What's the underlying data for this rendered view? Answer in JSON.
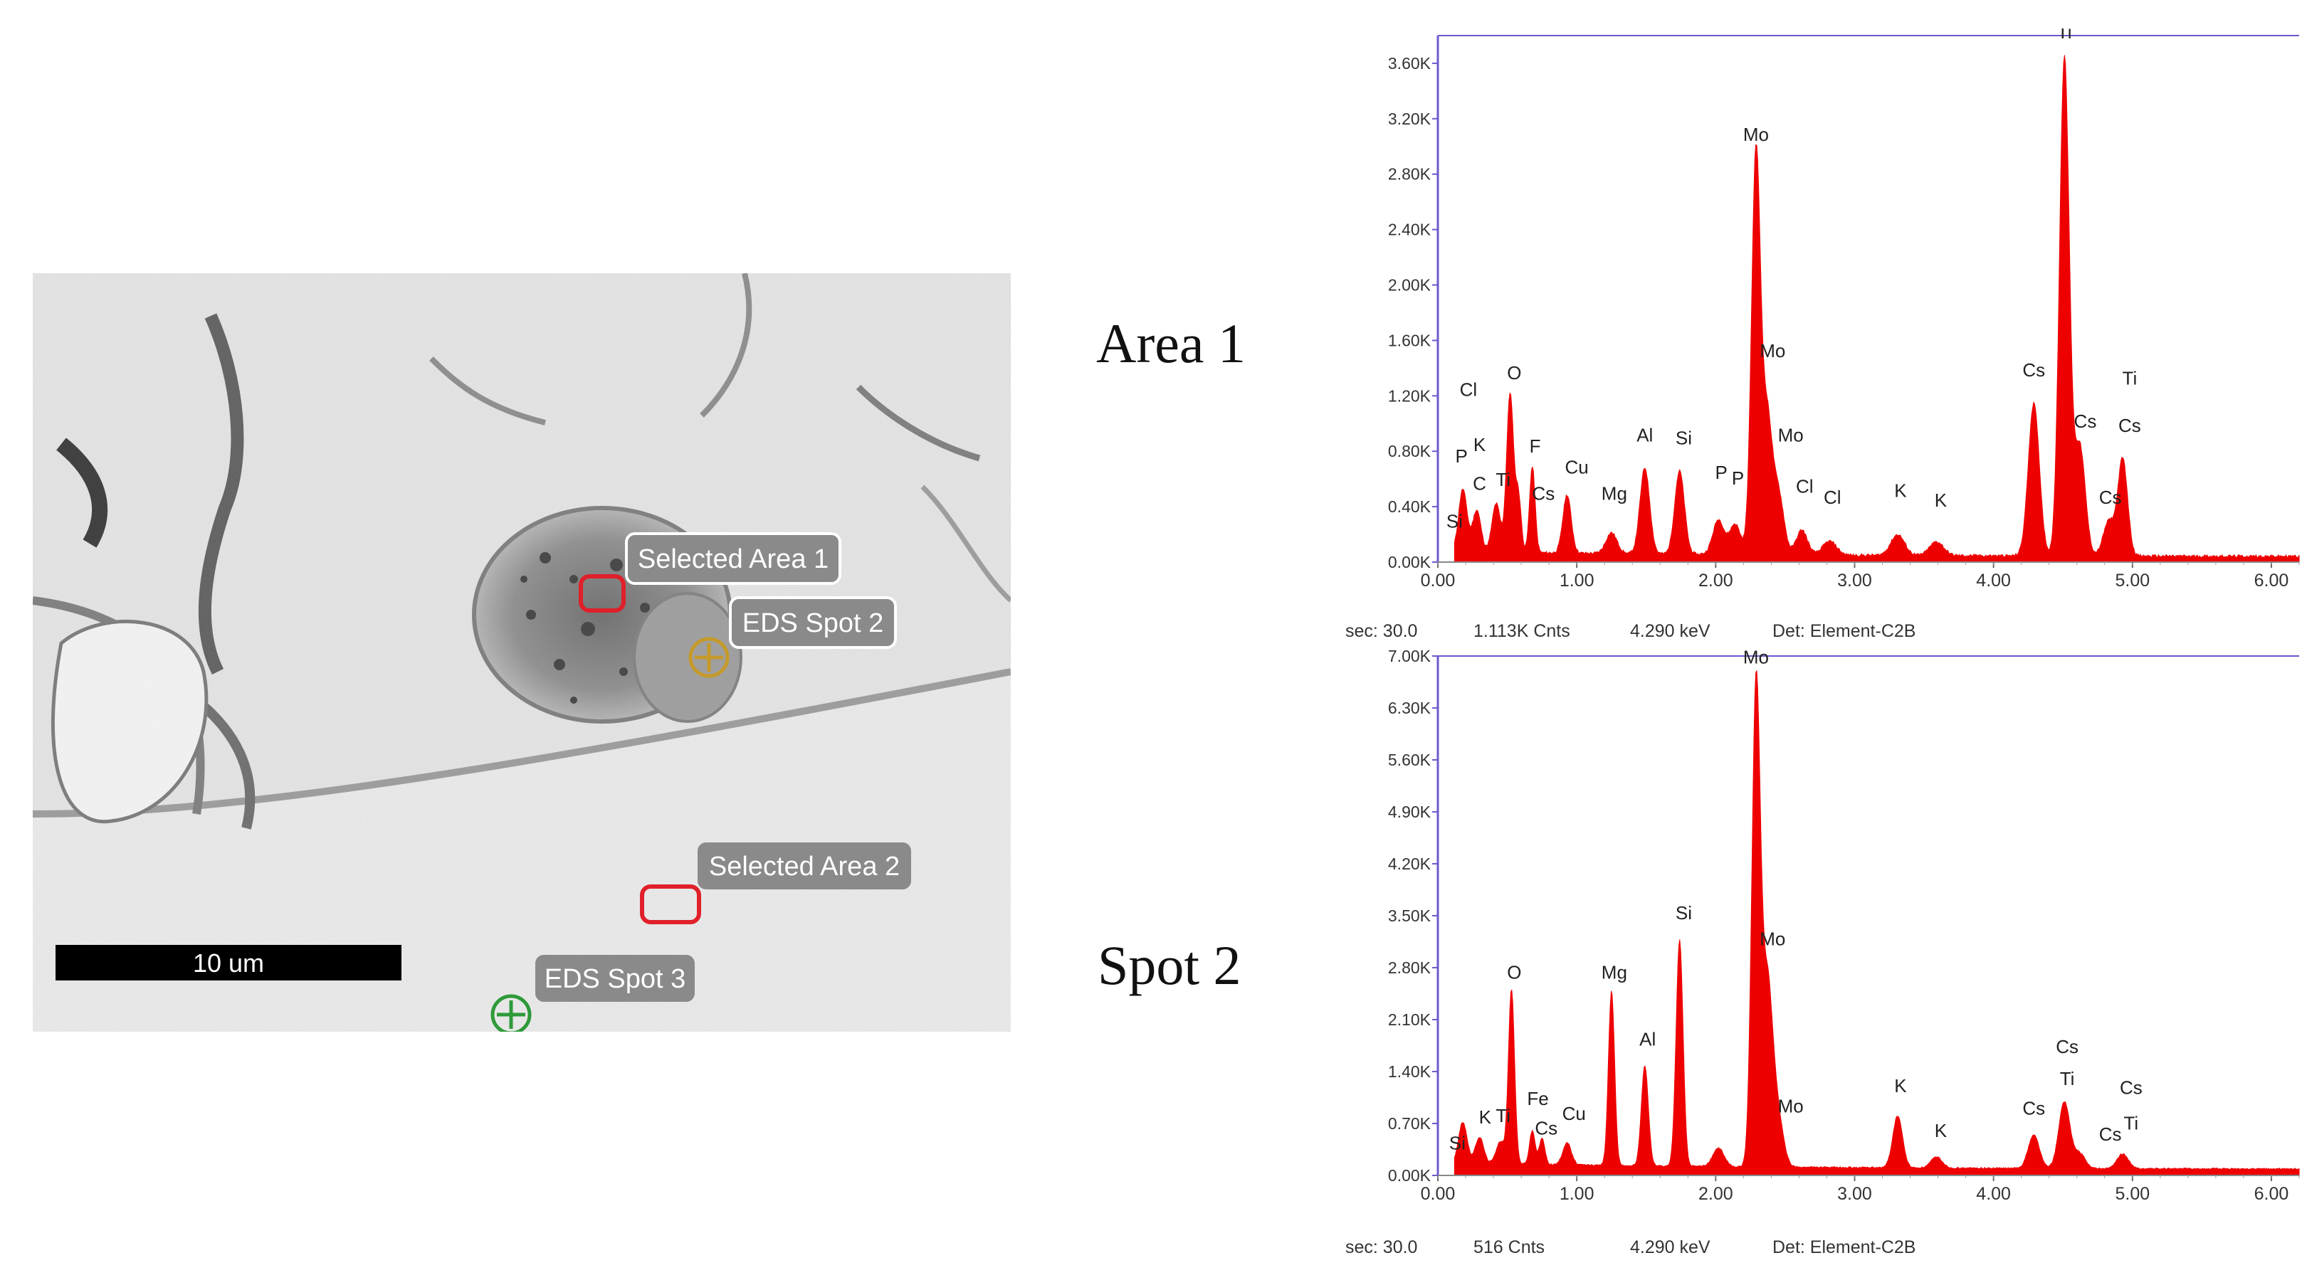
{
  "labels": {
    "area1": "Area 1",
    "spot2": "Spot 2"
  },
  "micrograph": {
    "scale_bar": "10 um",
    "annotations": [
      {
        "id": "area1",
        "text": "Selected Area 1",
        "kind": "area",
        "color": "#e0202a"
      },
      {
        "id": "spot2",
        "text": "EDS Spot 2",
        "kind": "spot",
        "color": "#c59a2a"
      },
      {
        "id": "area2",
        "text": "Selected Area 2",
        "kind": "area",
        "color": "#e0202a"
      },
      {
        "id": "spot3",
        "text": "EDS Spot 3",
        "kind": "spot",
        "color": "#2e9a3a"
      }
    ]
  },
  "colors": {
    "spectrum_fill": "#ee0000",
    "plot_frame": "#6a5acd",
    "tag_fill": "#8a8a8a",
    "tag_text": "#ffffff"
  },
  "chart_data": [
    {
      "type": "area",
      "title": "Area 1",
      "xlabel": "",
      "ylabel": "",
      "xlim": [
        0,
        6.2
      ],
      "ylim": [
        0,
        3.8
      ],
      "x_ticks": [
        "0.00",
        "1.00",
        "2.00",
        "3.00",
        "4.00",
        "5.00",
        "6.00"
      ],
      "y_ticks": [
        "0.00K",
        "0.40K",
        "0.80K",
        "1.20K",
        "1.60K",
        "2.00K",
        "2.40K",
        "2.80K",
        "3.20K",
        "3.60K"
      ],
      "background": 0.05,
      "peaks": [
        {
          "x": 0.18,
          "y": 0.45,
          "w": 0.03
        },
        {
          "x": 0.28,
          "y": 0.3,
          "w": 0.03
        },
        {
          "x": 0.42,
          "y": 0.35,
          "w": 0.03
        },
        {
          "x": 0.52,
          "y": 1.15,
          "w": 0.025
        },
        {
          "x": 0.58,
          "y": 0.4,
          "w": 0.02
        },
        {
          "x": 0.68,
          "y": 0.62,
          "w": 0.02
        },
        {
          "x": 0.93,
          "y": 0.42,
          "w": 0.03
        },
        {
          "x": 1.25,
          "y": 0.15,
          "w": 0.04
        },
        {
          "x": 1.49,
          "y": 0.62,
          "w": 0.035
        },
        {
          "x": 1.74,
          "y": 0.6,
          "w": 0.035
        },
        {
          "x": 2.02,
          "y": 0.25,
          "w": 0.04
        },
        {
          "x": 2.14,
          "y": 0.22,
          "w": 0.04
        },
        {
          "x": 2.29,
          "y": 2.9,
          "w": 0.032
        },
        {
          "x": 2.37,
          "y": 0.95,
          "w": 0.035
        },
        {
          "x": 2.45,
          "y": 0.45,
          "w": 0.04
        },
        {
          "x": 2.62,
          "y": 0.18,
          "w": 0.04
        },
        {
          "x": 2.82,
          "y": 0.1,
          "w": 0.05
        },
        {
          "x": 3.31,
          "y": 0.15,
          "w": 0.05
        },
        {
          "x": 3.59,
          "y": 0.1,
          "w": 0.05
        },
        {
          "x": 4.29,
          "y": 1.1,
          "w": 0.04
        },
        {
          "x": 4.51,
          "y": 3.6,
          "w": 0.035
        },
        {
          "x": 4.62,
          "y": 0.8,
          "w": 0.04
        },
        {
          "x": 4.83,
          "y": 0.25,
          "w": 0.04
        },
        {
          "x": 4.93,
          "y": 0.7,
          "w": 0.035
        }
      ],
      "peak_labels": [
        {
          "text": "Ti",
          "x": 4.51,
          "y": 3.78
        },
        {
          "text": "Mo",
          "x": 2.29,
          "y": 3.04
        },
        {
          "text": "Mo",
          "x": 2.41,
          "y": 1.48
        },
        {
          "text": "Mo",
          "x": 2.54,
          "y": 0.87
        },
        {
          "text": "Cl",
          "x": 0.22,
          "y": 1.2
        },
        {
          "text": "O",
          "x": 0.55,
          "y": 1.32
        },
        {
          "text": "K",
          "x": 0.3,
          "y": 0.8
        },
        {
          "text": "P",
          "x": 0.17,
          "y": 0.72
        },
        {
          "text": "C",
          "x": 0.3,
          "y": 0.52
        },
        {
          "text": "Ti",
          "x": 0.47,
          "y": 0.55
        },
        {
          "text": "F",
          "x": 0.7,
          "y": 0.79
        },
        {
          "text": "Cs",
          "x": 0.76,
          "y": 0.45
        },
        {
          "text": "Cu",
          "x": 1.0,
          "y": 0.64
        },
        {
          "text": "Mg",
          "x": 1.27,
          "y": 0.45
        },
        {
          "text": "Al",
          "x": 1.49,
          "y": 0.87
        },
        {
          "text": "Si",
          "x": 1.77,
          "y": 0.85
        },
        {
          "text": "P",
          "x": 2.04,
          "y": 0.6
        },
        {
          "text": "P",
          "x": 2.16,
          "y": 0.56
        },
        {
          "text": "Cl",
          "x": 2.64,
          "y": 0.5
        },
        {
          "text": "Cl",
          "x": 2.84,
          "y": 0.42
        },
        {
          "text": "K",
          "x": 3.33,
          "y": 0.47
        },
        {
          "text": "K",
          "x": 3.62,
          "y": 0.4
        },
        {
          "text": "Cs",
          "x": 4.29,
          "y": 1.34
        },
        {
          "text": "Cs",
          "x": 4.66,
          "y": 0.97
        },
        {
          "text": "Ti",
          "x": 4.98,
          "y": 1.28
        },
        {
          "text": "Cs",
          "x": 4.98,
          "y": 0.94
        },
        {
          "text": "Cs",
          "x": 4.84,
          "y": 0.42
        },
        {
          "text": "Si",
          "x": 0.12,
          "y": 0.25
        }
      ],
      "status": {
        "live_time": "sec: 30.0",
        "counts": "1.113K Cnts",
        "energy": "4.290 keV",
        "detector": "Det: Element-C2B"
      }
    },
    {
      "type": "area",
      "title": "Spot 2",
      "xlabel": "",
      "ylabel": "",
      "xlim": [
        0,
        6.2
      ],
      "ylim": [
        0,
        7.0
      ],
      "x_ticks": [
        "0.00",
        "1.00",
        "2.00",
        "3.00",
        "4.00",
        "5.00",
        "6.00"
      ],
      "y_ticks": [
        "0.00K",
        "0.70K",
        "1.40K",
        "2.10K",
        "2.80K",
        "3.50K",
        "4.20K",
        "4.90K",
        "5.60K",
        "6.30K",
        "7.00K"
      ],
      "background": 0.12,
      "peaks": [
        {
          "x": 0.18,
          "y": 0.55,
          "w": 0.03
        },
        {
          "x": 0.3,
          "y": 0.35,
          "w": 0.03
        },
        {
          "x": 0.45,
          "y": 0.3,
          "w": 0.03
        },
        {
          "x": 0.53,
          "y": 2.35,
          "w": 0.022
        },
        {
          "x": 0.68,
          "y": 0.45,
          "w": 0.02
        },
        {
          "x": 0.75,
          "y": 0.35,
          "w": 0.02
        },
        {
          "x": 0.93,
          "y": 0.3,
          "w": 0.03
        },
        {
          "x": 1.25,
          "y": 2.35,
          "w": 0.022
        },
        {
          "x": 1.49,
          "y": 1.35,
          "w": 0.025
        },
        {
          "x": 1.74,
          "y": 3.05,
          "w": 0.025
        },
        {
          "x": 2.02,
          "y": 0.25,
          "w": 0.04
        },
        {
          "x": 2.29,
          "y": 6.35,
          "w": 0.03
        },
        {
          "x": 2.37,
          "y": 2.5,
          "w": 0.04
        },
        {
          "x": 2.45,
          "y": 0.6,
          "w": 0.04
        },
        {
          "x": 3.31,
          "y": 0.7,
          "w": 0.035
        },
        {
          "x": 3.59,
          "y": 0.15,
          "w": 0.04
        },
        {
          "x": 4.29,
          "y": 0.45,
          "w": 0.04
        },
        {
          "x": 4.51,
          "y": 0.9,
          "w": 0.04
        },
        {
          "x": 4.62,
          "y": 0.2,
          "w": 0.04
        },
        {
          "x": 4.93,
          "y": 0.2,
          "w": 0.04
        }
      ],
      "peak_labels": [
        {
          "text": "Mo",
          "x": 2.29,
          "y": 6.9
        },
        {
          "text": "Mo",
          "x": 2.41,
          "y": 3.1
        },
        {
          "text": "Mo",
          "x": 2.54,
          "y": 0.85
        },
        {
          "text": "O",
          "x": 0.55,
          "y": 2.65
        },
        {
          "text": "Mg",
          "x": 1.27,
          "y": 2.65
        },
        {
          "text": "Si",
          "x": 1.77,
          "y": 3.45
        },
        {
          "text": "Al",
          "x": 1.51,
          "y": 1.75
        },
        {
          "text": "Fe",
          "x": 0.72,
          "y": 0.95
        },
        {
          "text": "Cs",
          "x": 0.78,
          "y": 0.55
        },
        {
          "text": "Cu",
          "x": 0.98,
          "y": 0.75
        },
        {
          "text": "K",
          "x": 0.34,
          "y": 0.7
        },
        {
          "text": "Ti",
          "x": 0.47,
          "y": 0.72
        },
        {
          "text": "Si",
          "x": 0.14,
          "y": 0.35
        },
        {
          "text": "K",
          "x": 3.33,
          "y": 1.12
        },
        {
          "text": "K",
          "x": 3.62,
          "y": 0.52
        },
        {
          "text": "Cs",
          "x": 4.29,
          "y": 0.82
        },
        {
          "text": "Ti",
          "x": 4.53,
          "y": 1.22
        },
        {
          "text": "Cs",
          "x": 4.53,
          "y": 1.65
        },
        {
          "text": "Cs",
          "x": 4.99,
          "y": 1.1
        },
        {
          "text": "Ti",
          "x": 4.99,
          "y": 0.62
        },
        {
          "text": "Cs",
          "x": 4.84,
          "y": 0.47
        }
      ],
      "status": {
        "live_time": "sec: 30.0",
        "counts": "516 Cnts",
        "energy": "4.290 keV",
        "detector": "Det: Element-C2B"
      }
    }
  ]
}
